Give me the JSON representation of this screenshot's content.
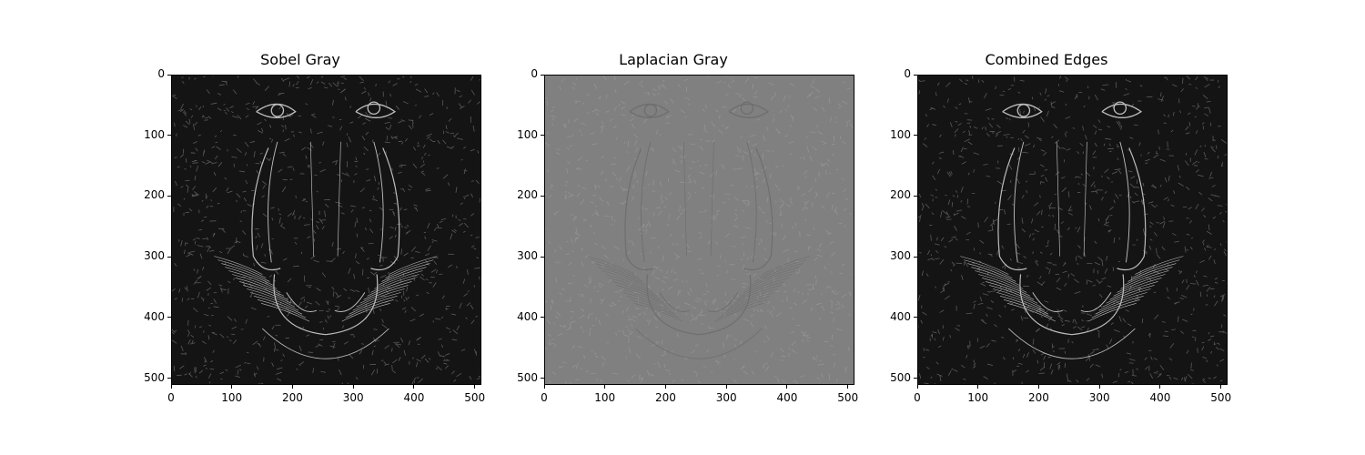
{
  "panels": [
    {
      "title": "Sobel Gray",
      "style": "dark-edges"
    },
    {
      "title": "Laplacian Gray",
      "style": "gray-laplacian"
    },
    {
      "title": "Combined Edges",
      "style": "dark-edges"
    }
  ],
  "axis": {
    "x_ticks": [
      "0",
      "100",
      "200",
      "300",
      "400",
      "500"
    ],
    "y_ticks": [
      "0",
      "100",
      "200",
      "300",
      "400",
      "500"
    ],
    "x_range": [
      0,
      511
    ],
    "y_range": [
      0,
      511
    ]
  }
}
